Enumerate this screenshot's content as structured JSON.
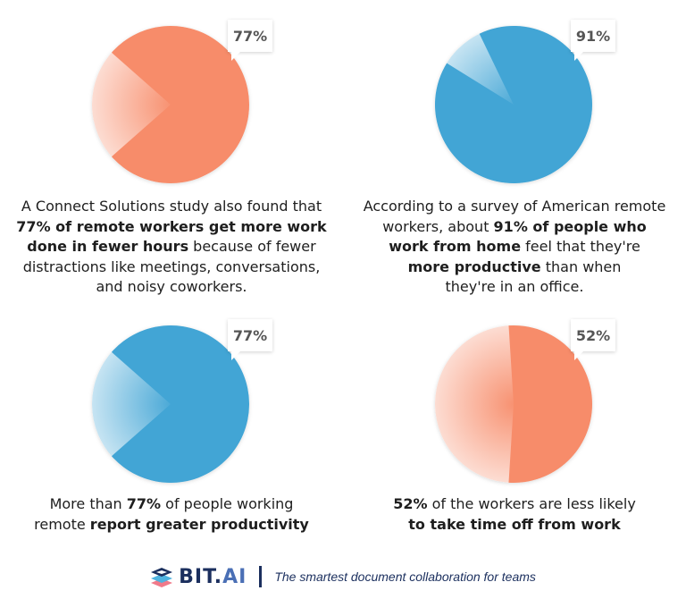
{
  "chart_data": [
    {
      "type": "pie",
      "value_percent": 77,
      "label": "77%",
      "color": "#F78C6A",
      "light_center_deg": 270
    },
    {
      "type": "pie",
      "value_percent": 91,
      "label": "91%",
      "color": "#42A5D5",
      "light_center_deg": 318
    },
    {
      "type": "pie",
      "value_percent": 77,
      "label": "77%",
      "color": "#42A5D5",
      "light_center_deg": 270
    },
    {
      "type": "pie",
      "value_percent": 52,
      "label": "52%",
      "color": "#F78C6A",
      "light_center_deg": 270
    }
  ],
  "captions": [
    {
      "lines": [
        [
          {
            "t": "A Connect Solutions study also found that",
            "b": false
          }
        ],
        [
          {
            "t": "77% of remote workers get more work",
            "b": true
          }
        ],
        [
          {
            "t": "done in fewer hours",
            "b": true
          },
          {
            "t": " because of fewer",
            "b": false
          }
        ],
        [
          {
            "t": "distractions like meetings, conversations,",
            "b": false
          }
        ],
        [
          {
            "t": "and noisy coworkers.",
            "b": false
          }
        ]
      ]
    },
    {
      "lines": [
        [
          {
            "t": "According to a survey of American remote",
            "b": false
          }
        ],
        [
          {
            "t": "workers, about ",
            "b": false
          },
          {
            "t": "91% of people who",
            "b": true
          }
        ],
        [
          {
            "t": "work from home",
            "b": true
          },
          {
            "t": " feel that they're",
            "b": false
          }
        ],
        [
          {
            "t": "more productive",
            "b": true
          },
          {
            "t": " than when",
            "b": false
          }
        ],
        [
          {
            "t": "they're in an office.",
            "b": false
          }
        ]
      ]
    },
    {
      "lines": [
        [
          {
            "t": "More than ",
            "b": false
          },
          {
            "t": "77%",
            "b": true
          },
          {
            "t": " of people working",
            "b": false
          }
        ],
        [
          {
            "t": "remote ",
            "b": false
          },
          {
            "t": "report greater productivity",
            "b": true
          }
        ]
      ]
    },
    {
      "lines": [
        [
          {
            "t": "52%",
            "b": true
          },
          {
            "t": " of the workers are less likely",
            "b": false
          }
        ],
        [
          {
            "t": "to take time off from work",
            "b": true
          }
        ]
      ]
    }
  ],
  "footer": {
    "brand_main": "BIT.",
    "brand_ai": "AI",
    "tagline": "The smartest document collaboration for teams"
  }
}
